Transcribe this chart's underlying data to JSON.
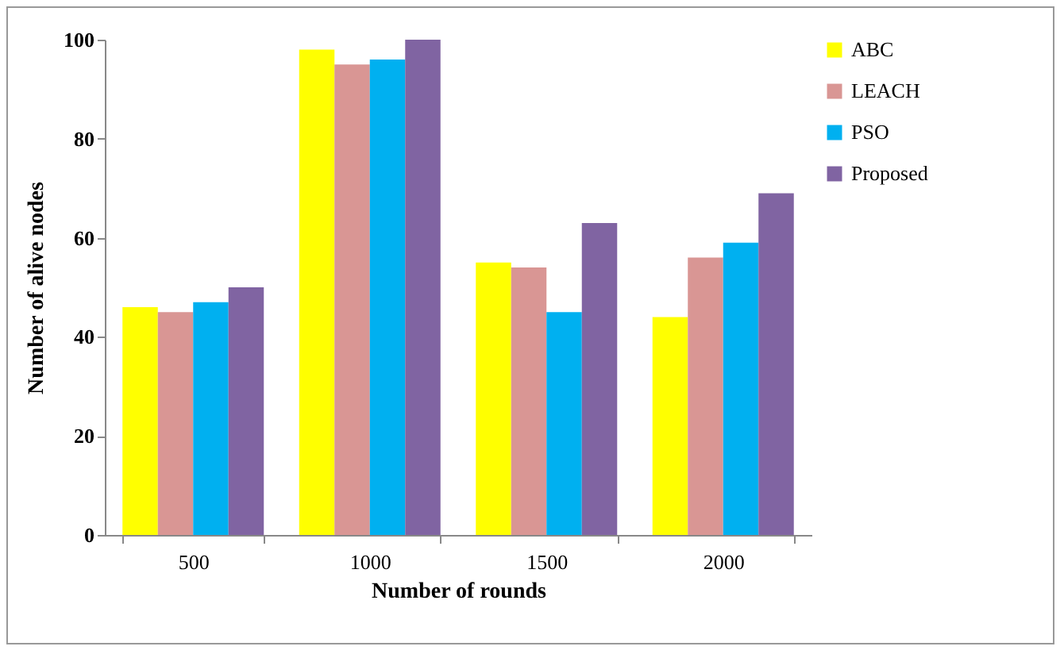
{
  "chart_data": {
    "type": "bar",
    "xlabel": "Number of rounds",
    "ylabel": "Number of alive nodes",
    "categories": [
      "500",
      "1000",
      "1500",
      "2000"
    ],
    "series": [
      {
        "name": "ABC",
        "color": "#ffff00",
        "values": [
          46,
          98,
          55,
          44
        ]
      },
      {
        "name": "LEACH",
        "color": "#d99694",
        "values": [
          45,
          95,
          54,
          56
        ]
      },
      {
        "name": "PSO",
        "color": "#00b0f0",
        "values": [
          47,
          96,
          45,
          59
        ]
      },
      {
        "name": "Proposed",
        "color": "#8064a2",
        "values": [
          50,
          100,
          63,
          69
        ]
      }
    ],
    "ylim": [
      0,
      100
    ],
    "yticks": [
      0,
      20,
      40,
      60,
      80,
      100
    ],
    "grid": false,
    "legend": "right"
  }
}
